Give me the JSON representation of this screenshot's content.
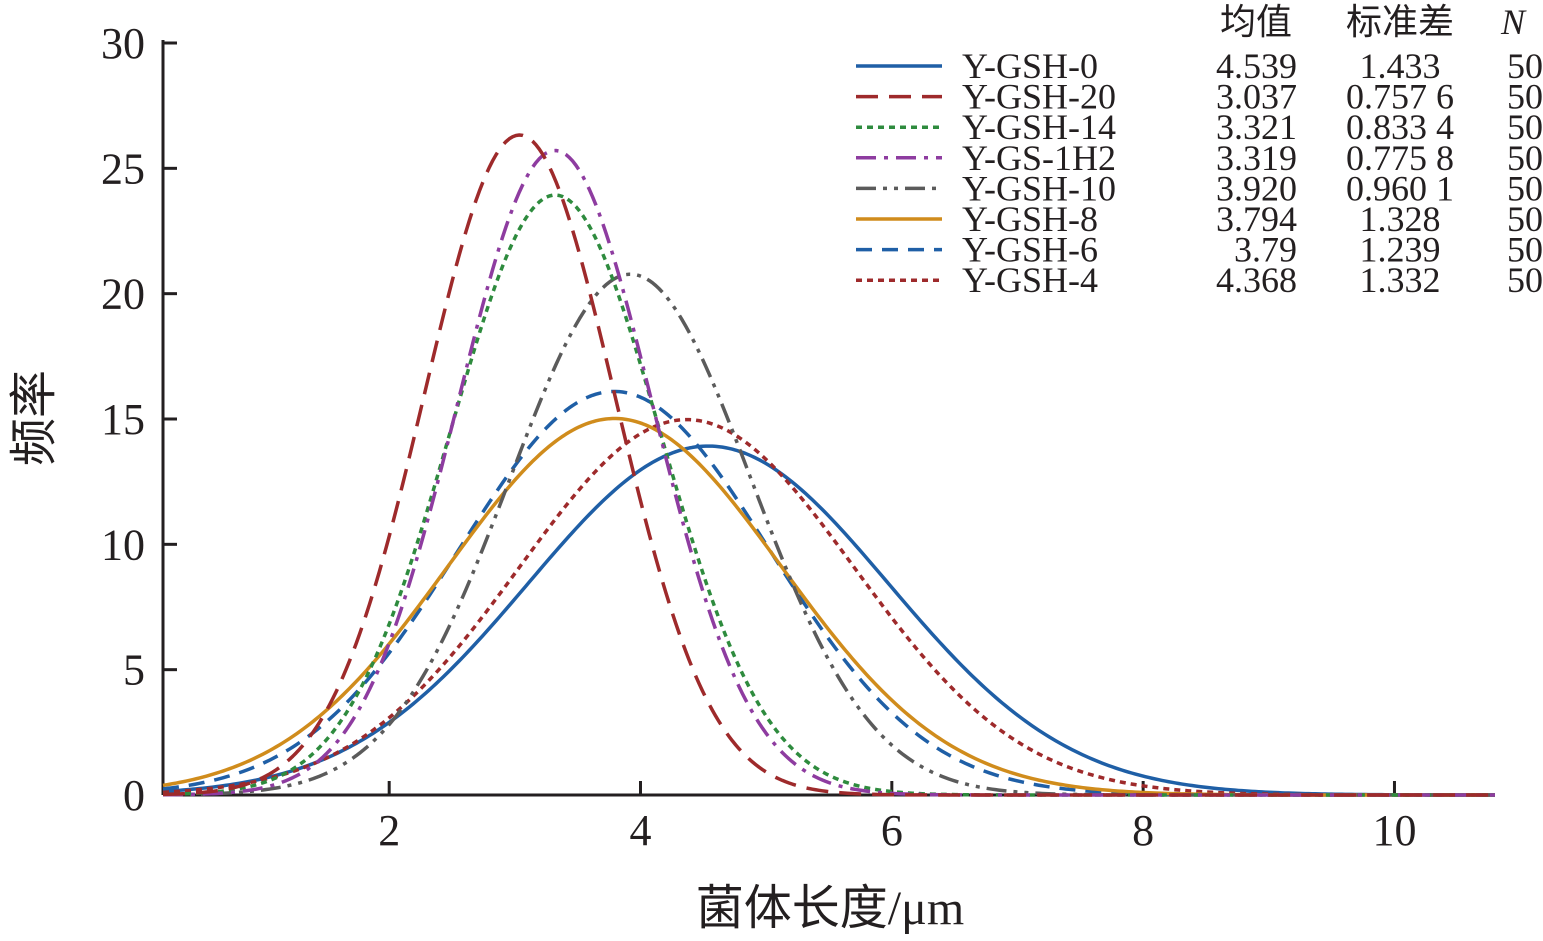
{
  "chart_data": {
    "type": "line",
    "title": "",
    "xlabel": "菌体长度/μm",
    "ylabel": "频率",
    "xlim": [
      0.2,
      10.8
    ],
    "ylim": [
      0,
      30
    ],
    "xticks": [
      2,
      4,
      6,
      8,
      10
    ],
    "yticks": [
      0,
      5,
      10,
      15,
      20,
      25,
      30
    ],
    "xtick_labels": [
      "2",
      "4",
      "6",
      "8",
      "10"
    ],
    "ytick_labels": [
      "0",
      "5",
      "10",
      "15",
      "20",
      "25",
      "30"
    ],
    "grid": false,
    "legend_position": "top-right",
    "legend_headers": {
      "mean": "均值",
      "std": "标准差",
      "n": "N"
    },
    "series": [
      {
        "name": "Y-GSH-0",
        "mean": 4.539,
        "std": 1.433,
        "mean_label": "4.539",
        "std_label": "1.433",
        "n": "50",
        "color": "#1f5fa6",
        "dash": "solid"
      },
      {
        "name": "Y-GSH-20",
        "mean": 3.037,
        "std": 0.7576,
        "mean_label": "3.037",
        "std_label": "0.757 6",
        "n": "50",
        "color": "#9e2a2b",
        "dash": "long-dash"
      },
      {
        "name": "Y-GSH-14",
        "mean": 3.321,
        "std": 0.8334,
        "mean_label": "3.321",
        "std_label": "0.833 4",
        "n": "50",
        "color": "#2e8b3e",
        "dash": "dot"
      },
      {
        "name": "Y-GS-1H2",
        "mean": 3.319,
        "std": 0.7758,
        "mean_label": "3.319",
        "std_label": "0.775 8",
        "n": "50",
        "color": "#8e3ca0",
        "dash": "dash-dot"
      },
      {
        "name": "Y-GSH-10",
        "mean": 3.92,
        "std": 0.9601,
        "mean_label": "3.920",
        "std_label": "0.960 1",
        "n": "50",
        "color": "#5b5b5b",
        "dash": "dash-dot-dot"
      },
      {
        "name": "Y-GSH-8",
        "mean": 3.794,
        "std": 1.328,
        "mean_label": "3.794",
        "std_label": "1.328",
        "n": "50",
        "color": "#d08c1c",
        "dash": "solid"
      },
      {
        "name": "Y-GSH-6",
        "mean": 3.79,
        "std": 1.239,
        "mean_label": "3.79",
        "std_label": "1.239",
        "n": "50",
        "color": "#1f5fa6",
        "dash": "dash"
      },
      {
        "name": "Y-GSH-4",
        "mean": 4.368,
        "std": 1.332,
        "mean_label": "4.368",
        "std_label": "1.332",
        "n": "50",
        "color": "#9e2a2b",
        "dash": "dot"
      }
    ]
  }
}
